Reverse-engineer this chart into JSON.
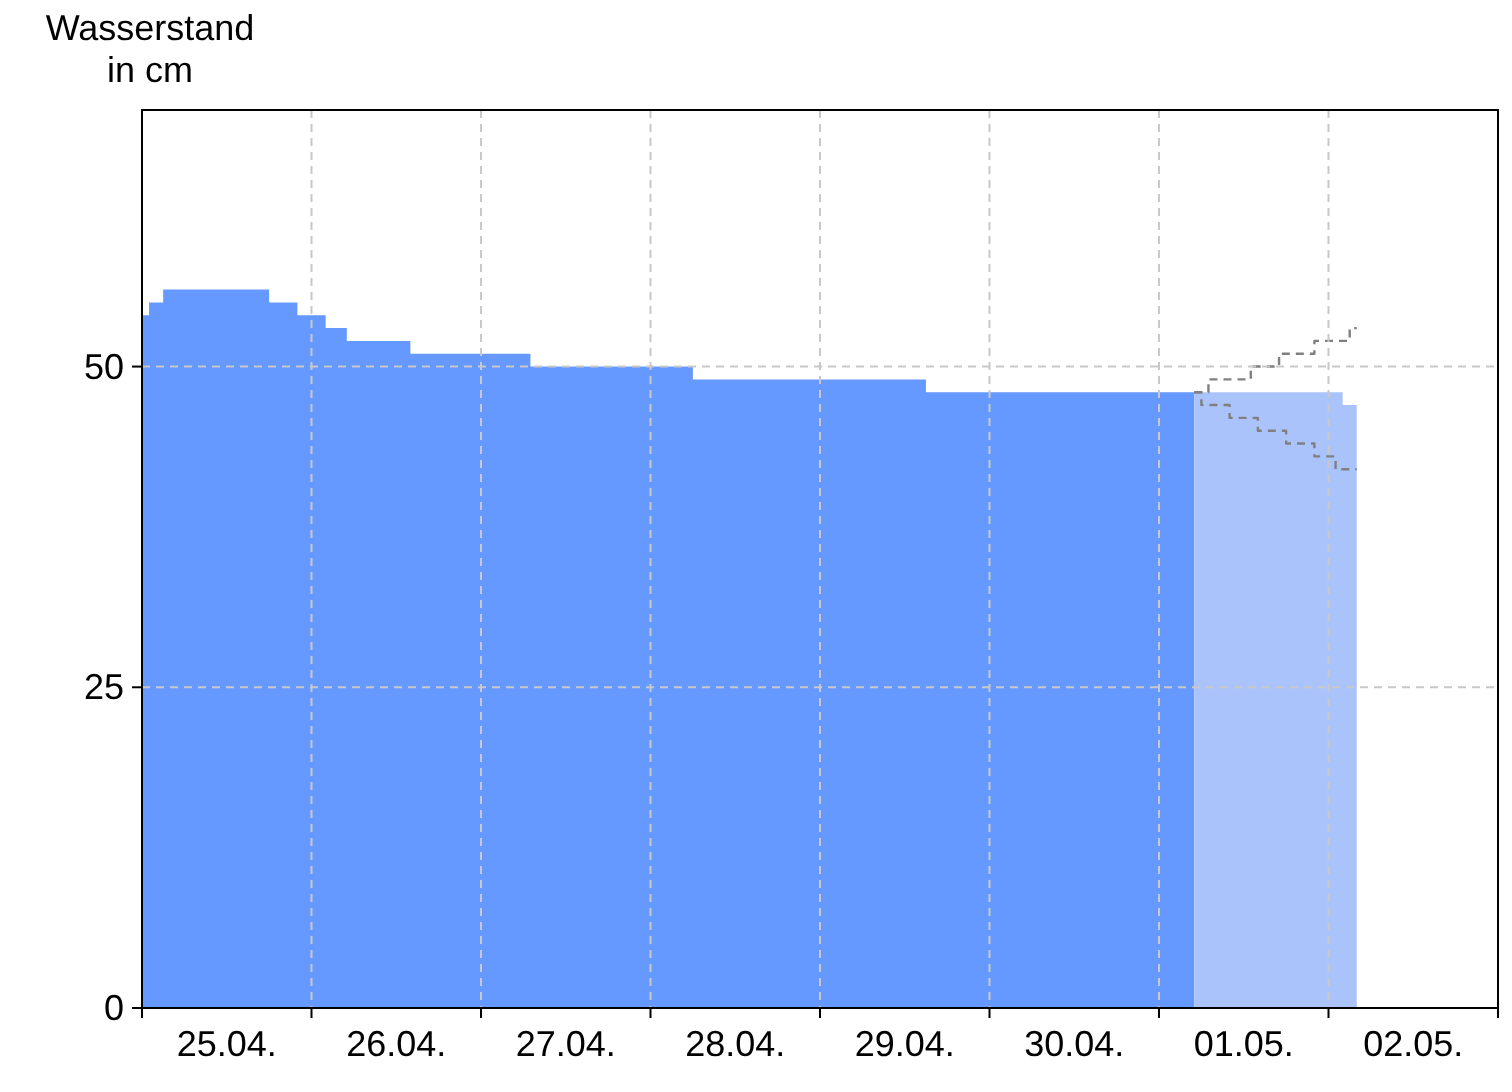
{
  "chart_data": {
    "type": "area",
    "ylabel": "Wasserstand in cm",
    "xlim": [
      "--04-25T00:00",
      "--05-03T00:00"
    ],
    "ylim": [
      0,
      70
    ],
    "yticks": [
      0,
      25,
      50
    ],
    "grid": true,
    "xticks": [
      {
        "value": "--04-25T00:00",
        "label": null
      },
      {
        "value": "--04-25T12:00",
        "label": "25.04."
      },
      {
        "value": "--04-26T00:00",
        "label": null
      },
      {
        "value": "--04-26T12:00",
        "label": "26.04."
      },
      {
        "value": "--04-27T00:00",
        "label": null
      },
      {
        "value": "--04-27T12:00",
        "label": "27.04."
      },
      {
        "value": "--04-28T00:00",
        "label": null
      },
      {
        "value": "--04-28T12:00",
        "label": "28.04."
      },
      {
        "value": "--04-29T00:00",
        "label": null
      },
      {
        "value": "--04-29T12:00",
        "label": "29.04."
      },
      {
        "value": "--04-30T00:00",
        "label": null
      },
      {
        "value": "--04-30T12:00",
        "label": "30.04."
      },
      {
        "value": "--05-01T00:00",
        "label": null
      },
      {
        "value": "--05-01T12:00",
        "label": "01.05."
      },
      {
        "value": "--05-02T00:00",
        "label": null
      },
      {
        "value": "--05-02T12:00",
        "label": "02.05."
      },
      {
        "value": "--05-03T00:00",
        "label": null
      }
    ],
    "series": [
      {
        "color": "#6699ff",
        "x": [
          "--04-25T00:00",
          "--04-25T01:00",
          "--04-25T03:00",
          "--04-25T18:00",
          "--04-25T22:00",
          "--04-26T02:00",
          "--04-26T05:00",
          "--04-26T14:00",
          "--04-27T07:00",
          "--04-28T06:00",
          "--04-29T15:00",
          "--05-01T05:00"
        ],
        "values": [
          54,
          55,
          56,
          55,
          54,
          53,
          52,
          51,
          50,
          49,
          48,
          48
        ]
      },
      {
        "color": "#aac4fb",
        "x": [
          "--05-01T05:00",
          "--05-02T02:00",
          "--05-02T04:00"
        ],
        "values": [
          48,
          47,
          47
        ]
      },
      {
        "type": "step",
        "color": "#808080",
        "line_style": "dashed",
        "x": [
          "--05-01T05:00",
          "--05-01T07:00",
          "--05-01T13:00",
          "--05-01T17:00",
          "--05-01T22:00",
          "--05-02T03:00",
          "--05-02T04:00"
        ],
        "values": [
          48,
          49,
          50,
          51,
          52,
          53,
          53
        ]
      },
      {
        "type": "step",
        "color": "#808080",
        "line_style": "dashed",
        "x": [
          "--05-01T05:00",
          "--05-01T06:00",
          "--05-01T10:00",
          "--05-01T14:00",
          "--05-01T18:00",
          "--05-01T22:00",
          "--05-02T01:00",
          "--05-02T04:00"
        ],
        "values": [
          48,
          47,
          46,
          45,
          44,
          43,
          42,
          42
        ]
      }
    ]
  }
}
